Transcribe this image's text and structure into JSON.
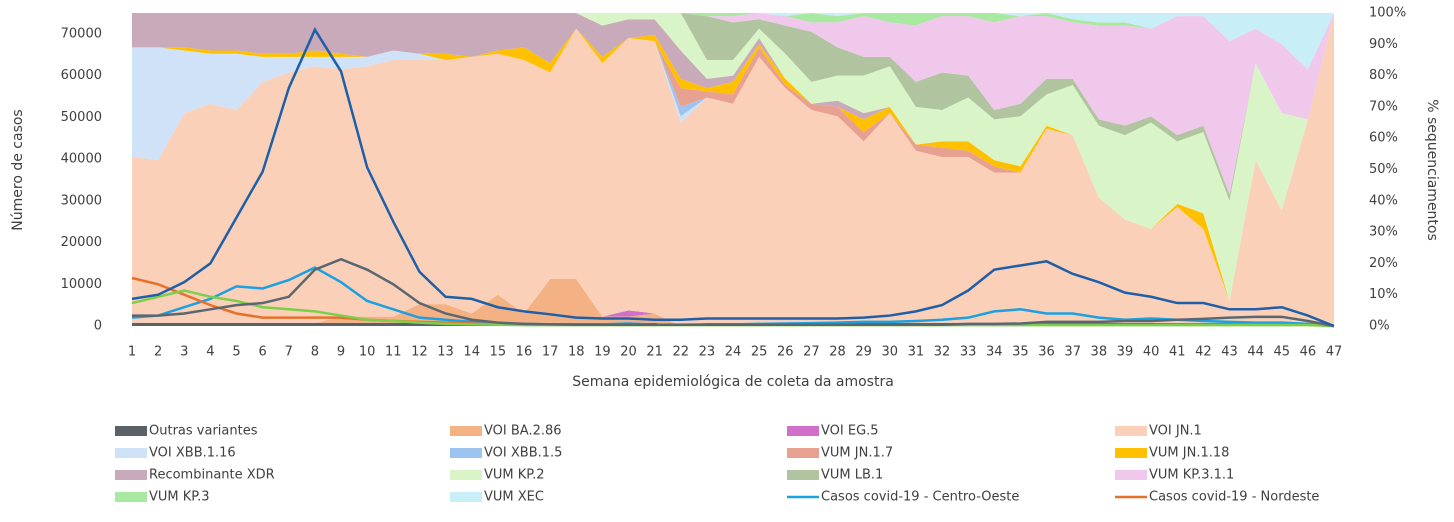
{
  "chart_data": {
    "type": "combo",
    "x_label": "Semana epidemiológica de coleta da amostra",
    "y_label": "Número de casos",
    "y2_label": "% sequenciamentos",
    "categories": [
      "1",
      "2",
      "3",
      "4",
      "5",
      "6",
      "7",
      "8",
      "9",
      "10",
      "11",
      "12",
      "13",
      "14",
      "15",
      "16",
      "17",
      "18",
      "19",
      "20",
      "21",
      "22",
      "23",
      "24",
      "25",
      "26",
      "27",
      "28",
      "29",
      "30",
      "31",
      "32",
      "33",
      "34",
      "35",
      "36",
      "37",
      "38",
      "39",
      "40",
      "41",
      "42",
      "43",
      "44",
      "45",
      "46",
      "47"
    ],
    "ylim": [
      0,
      75000
    ],
    "yticks": [
      0,
      10000,
      20000,
      30000,
      40000,
      50000,
      60000,
      70000
    ],
    "y2lim": [
      0,
      100
    ],
    "y2ticks": [
      {
        "value": 0,
        "label": "0%"
      },
      {
        "value": 10,
        "label": "10%"
      },
      {
        "value": 20,
        "label": "20%"
      },
      {
        "value": 30,
        "label": "30%"
      },
      {
        "value": 40,
        "label": "40%"
      },
      {
        "value": 50,
        "label": "50%"
      },
      {
        "value": 60,
        "label": "60%"
      },
      {
        "value": 70,
        "label": "70%"
      },
      {
        "value": 80,
        "label": "80%"
      },
      {
        "value": 90,
        "label": "90%"
      },
      {
        "value": 100,
        "label": "100%"
      }
    ],
    "series": [
      {
        "name": "Outras variantes",
        "type": "area",
        "axis": "y2",
        "color": "#5a6268",
        "values": [
          1,
          1,
          1,
          1,
          1,
          1,
          1,
          1,
          1,
          1,
          1,
          1,
          1,
          1,
          1,
          1,
          1,
          1,
          1,
          1,
          1,
          0,
          1,
          1,
          1,
          1,
          1,
          1,
          1,
          1,
          1,
          1,
          1,
          1,
          1,
          1,
          1,
          1,
          1,
          1,
          1,
          1,
          1,
          1,
          1,
          0,
          0
        ]
      },
      {
        "name": "VOI BA.2.86",
        "type": "area",
        "axis": "y2",
        "color": "#f4b183",
        "values": [
          0,
          0,
          0,
          0,
          0,
          0,
          0,
          0,
          2,
          2,
          2,
          6,
          6,
          3,
          9,
          3,
          14,
          14,
          2,
          2,
          3,
          0,
          0,
          0,
          0,
          0,
          0,
          0,
          0,
          0,
          0,
          0,
          0,
          0,
          0,
          0,
          0,
          0,
          0,
          0,
          0,
          0,
          0,
          0,
          0,
          0,
          0
        ]
      },
      {
        "name": "VOI EG.5",
        "type": "area",
        "axis": "y2",
        "color": "#d070c8",
        "values": [
          0,
          0,
          0,
          0,
          0,
          0,
          0,
          0,
          0,
          0,
          0,
          0,
          0,
          0,
          0,
          0,
          0,
          0,
          0,
          2,
          0,
          0,
          0,
          0,
          0,
          0,
          0,
          0,
          0,
          0,
          0,
          0,
          0,
          0,
          0,
          0,
          0,
          0,
          0,
          0,
          0,
          0,
          0,
          0,
          0,
          0,
          0
        ]
      },
      {
        "name": "VOI JN.1",
        "type": "area",
        "axis": "y2",
        "color": "#fbd0b8",
        "values": [
          53,
          52,
          67,
          70,
          68,
          77,
          80,
          82,
          79,
          80,
          82,
          78,
          78,
          82,
          77,
          81,
          66,
          80,
          81,
          87,
          87,
          65,
          72,
          70,
          85,
          75,
          68,
          66,
          58,
          67,
          55,
          53,
          53,
          48,
          48,
          62,
          60,
          40,
          33,
          30,
          37,
          30,
          7,
          52,
          36,
          66,
          100
        ]
      },
      {
        "name": "VOI XBB.1.16",
        "type": "area",
        "axis": "y2",
        "color": "#cfe2f7",
        "values": [
          35,
          36,
          20,
          16,
          18,
          8,
          5,
          3,
          4,
          3,
          3,
          2,
          0,
          0,
          0,
          0,
          0,
          0,
          0,
          0,
          0,
          2,
          0,
          0,
          0,
          0,
          0,
          0,
          0,
          0,
          0,
          0,
          0,
          0,
          0,
          0,
          0,
          0,
          0,
          0,
          0,
          0,
          0,
          0,
          0,
          0,
          0
        ]
      },
      {
        "name": "VOI XBB.1.5",
        "type": "area",
        "axis": "y2",
        "color": "#9dc3f0",
        "values": [
          0,
          0,
          0,
          0,
          0,
          0,
          0,
          0,
          0,
          0,
          0,
          0,
          0,
          0,
          0,
          0,
          0,
          0,
          0,
          0,
          0,
          3,
          0,
          0,
          0,
          0,
          0,
          0,
          0,
          0,
          0,
          0,
          0,
          0,
          0,
          0,
          0,
          0,
          0,
          0,
          0,
          0,
          0,
          0,
          0,
          0,
          0
        ]
      },
      {
        "name": "VUM JN.1.7",
        "type": "area",
        "axis": "y2",
        "color": "#e8a090",
        "values": [
          0,
          0,
          0,
          0,
          0,
          0,
          0,
          0,
          0,
          0,
          0,
          0,
          0,
          0,
          0,
          0,
          0,
          0,
          0,
          0,
          0,
          6,
          2,
          3,
          3,
          1,
          2,
          3,
          3,
          0,
          2,
          3,
          2,
          2,
          0,
          0,
          0,
          0,
          0,
          0,
          0,
          0,
          0,
          0,
          0,
          0,
          0
        ]
      },
      {
        "name": "VUM JN.1.18",
        "type": "area",
        "axis": "y2",
        "color": "#ffc000",
        "values": [
          0,
          0,
          1,
          1,
          1,
          1,
          1,
          2,
          1,
          0,
          0,
          0,
          2,
          0,
          1,
          4,
          3,
          0,
          2,
          0,
          2,
          3,
          1,
          4,
          1,
          2,
          0,
          0,
          4,
          2,
          0,
          2,
          3,
          2,
          2,
          1,
          0,
          0,
          0,
          0,
          1,
          5,
          0,
          0,
          0,
          0,
          0
        ]
      },
      {
        "name": "Recombinante XDR",
        "type": "area",
        "axis": "y2",
        "color": "#c9aabb",
        "values": [
          11,
          11,
          11,
          12,
          12,
          13,
          13,
          12,
          13,
          14,
          12,
          13,
          13,
          14,
          12,
          11,
          16,
          5,
          10,
          6,
          5,
          9,
          3,
          2,
          2,
          0,
          0,
          2,
          2,
          0,
          0,
          0,
          0,
          0,
          0,
          0,
          0,
          0,
          0,
          0,
          0,
          0,
          0,
          0,
          0,
          0,
          0
        ]
      },
      {
        "name": "VUM KP.2",
        "type": "area",
        "axis": "y2",
        "color": "#d9f5c8",
        "values": [
          0,
          0,
          0,
          0,
          0,
          0,
          0,
          0,
          0,
          0,
          0,
          0,
          0,
          0,
          0,
          0,
          0,
          0,
          4,
          2,
          2,
          12,
          6,
          5,
          3,
          8,
          7,
          8,
          12,
          13,
          12,
          10,
          14,
          13,
          16,
          10,
          16,
          23,
          27,
          34,
          20,
          26,
          32,
          31,
          31,
          0,
          0
        ]
      },
      {
        "name": "VUM LB.1",
        "type": "area",
        "axis": "y2",
        "color": "#b0c4a0",
        "values": [
          0,
          0,
          0,
          0,
          0,
          0,
          0,
          0,
          0,
          0,
          0,
          0,
          0,
          0,
          0,
          0,
          0,
          0,
          0,
          0,
          0,
          0,
          14,
          12,
          3,
          9,
          16,
          9,
          6,
          3,
          8,
          12,
          7,
          3,
          4,
          5,
          2,
          2,
          3,
          2,
          2,
          2,
          2,
          0,
          0,
          0,
          0
        ]
      },
      {
        "name": "VUM KP.3.1.1",
        "type": "area",
        "axis": "y2",
        "color": "#f0c8ec",
        "values": [
          0,
          0,
          0,
          0,
          0,
          0,
          0,
          0,
          0,
          0,
          0,
          0,
          0,
          0,
          0,
          0,
          0,
          0,
          0,
          0,
          0,
          0,
          0,
          2,
          2,
          3,
          3,
          8,
          13,
          11,
          18,
          18,
          19,
          28,
          28,
          20,
          18,
          30,
          32,
          28,
          38,
          35,
          49,
          11,
          22,
          16,
          0
        ]
      },
      {
        "name": "VUM KP.3",
        "type": "area",
        "axis": "y2",
        "color": "#a8e8a0",
        "values": [
          0,
          0,
          0,
          0,
          0,
          0,
          0,
          0,
          0,
          0,
          0,
          0,
          0,
          0,
          0,
          0,
          0,
          0,
          0,
          0,
          0,
          0,
          1,
          1,
          0,
          0,
          3,
          2,
          1,
          3,
          4,
          1,
          1,
          3,
          0,
          1,
          1,
          1,
          1,
          0,
          0,
          0,
          0,
          0,
          0,
          0,
          0
        ]
      },
      {
        "name": "VUM XEC",
        "type": "area",
        "axis": "y2",
        "color": "#c8eef8",
        "values": [
          0,
          0,
          0,
          0,
          0,
          0,
          0,
          0,
          0,
          0,
          0,
          0,
          0,
          0,
          0,
          0,
          0,
          0,
          0,
          0,
          0,
          0,
          0,
          0,
          0,
          1,
          0,
          1,
          0,
          0,
          0,
          0,
          0,
          0,
          1,
          0,
          2,
          3,
          3,
          5,
          1,
          1,
          9,
          5,
          10,
          18,
          0
        ]
      },
      {
        "name": "Casos covid-19 - Centro-Oeste",
        "type": "line",
        "axis": "y",
        "color": "#1ba1e2",
        "values": [
          2000,
          2500,
          4500,
          6500,
          9500,
          9000,
          11000,
          14000,
          10500,
          6000,
          4000,
          2000,
          1500,
          1000,
          600,
          500,
          400,
          400,
          400,
          600,
          300,
          300,
          400,
          400,
          500,
          600,
          700,
          800,
          1000,
          1000,
          1200,
          1500,
          2000,
          3500,
          4000,
          3000,
          3000,
          2000,
          1500,
          1800,
          1500,
          1200,
          1000,
          800,
          800,
          500,
          0
        ]
      },
      {
        "name": "Casos covid-19 - Nordeste",
        "type": "line",
        "axis": "y",
        "color": "#e8702a",
        "values": [
          11500,
          10000,
          7500,
          5000,
          3000,
          2000,
          2000,
          2000,
          2000,
          1500,
          1200,
          1000,
          800,
          600,
          400,
          300,
          300,
          300,
          300,
          300,
          300,
          300,
          300,
          300,
          300,
          300,
          300,
          300,
          300,
          300,
          300,
          300,
          300,
          300,
          300,
          300,
          300,
          300,
          300,
          300,
          400,
          400,
          400,
          400,
          400,
          300,
          0
        ]
      },
      {
        "type": "line",
        "axis": "y",
        "color": "#7ccf4a",
        "values": [
          5500,
          7000,
          8500,
          7000,
          6000,
          4500,
          4000,
          3500,
          2500,
          1500,
          1200,
          800,
          500,
          400,
          300,
          200,
          200,
          200,
          200,
          200,
          200,
          200,
          200,
          200,
          200,
          200,
          200,
          200,
          200,
          200,
          200,
          200,
          200,
          200,
          200,
          200,
          200,
          200,
          200,
          200,
          200,
          200,
          200,
          200,
          200,
          200,
          0
        ]
      },
      {
        "type": "line",
        "axis": "y",
        "color": "#5b6770",
        "values": [
          2500,
          2500,
          3000,
          4000,
          5000,
          5500,
          7000,
          13500,
          16000,
          13500,
          10000,
          5500,
          3000,
          1500,
          800,
          500,
          400,
          300,
          300,
          300,
          300,
          300,
          300,
          300,
          300,
          300,
          300,
          300,
          300,
          300,
          300,
          300,
          500,
          500,
          600,
          1000,
          1000,
          1000,
          1200,
          1200,
          1500,
          1700,
          2000,
          2200,
          2200,
          1200,
          0
        ]
      },
      {
        "type": "line",
        "axis": "y",
        "color": "#1f5fa8",
        "values": [
          6500,
          7500,
          10500,
          15000,
          26000,
          37000,
          57000,
          71000,
          61000,
          38000,
          25000,
          13000,
          7000,
          6500,
          4500,
          3500,
          2800,
          2000,
          1800,
          1800,
          1500,
          1500,
          1800,
          1800,
          1800,
          1800,
          1800,
          1800,
          2000,
          2500,
          3500,
          5000,
          8500,
          13500,
          14500,
          15500,
          12500,
          10500,
          8000,
          7000,
          5500,
          5500,
          4000,
          4000,
          4500,
          2500,
          0
        ]
      }
    ]
  }
}
